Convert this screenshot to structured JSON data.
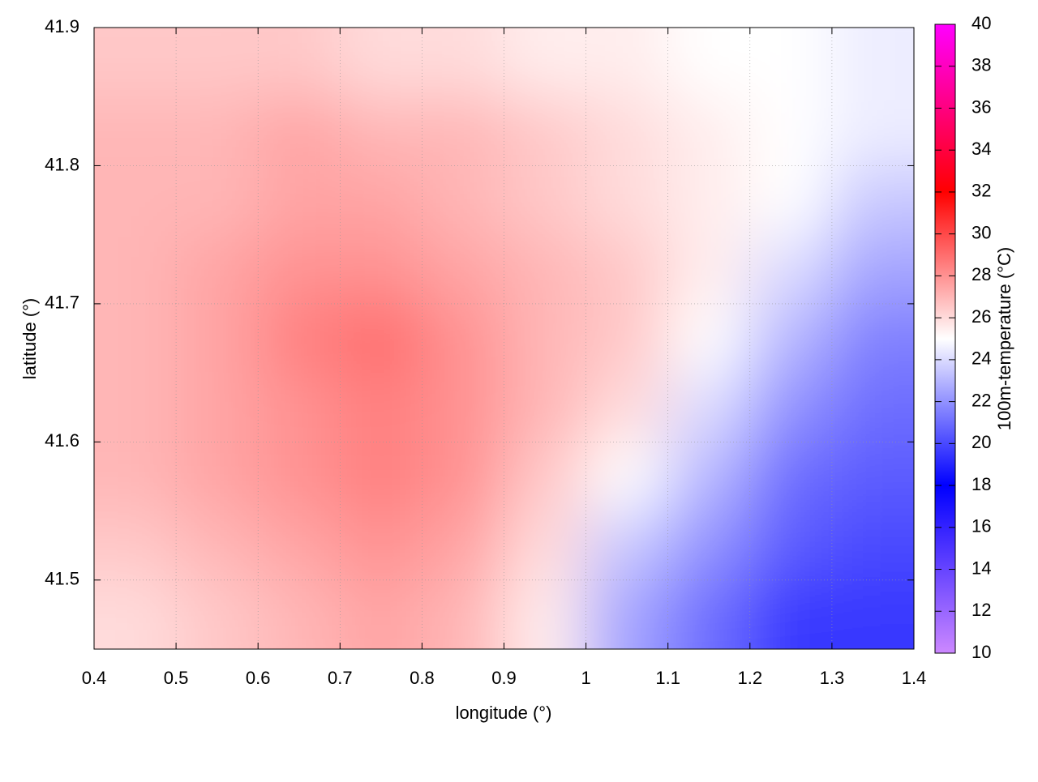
{
  "chart_data": {
    "type": "heatmap",
    "xlabel": "longitude (°)",
    "ylabel": "latitude (°)",
    "colorbar_label": "100m-temperature (°C)",
    "x": [
      0.45,
      0.55,
      0.65,
      0.75,
      0.85,
      0.95,
      1.05,
      1.15,
      1.25,
      1.35
    ],
    "y": [
      41.475,
      41.525,
      41.575,
      41.625,
      41.675,
      41.725,
      41.775,
      41.825,
      41.875
    ],
    "z": [
      [
        26,
        26.5,
        27,
        27.5,
        27,
        25.5,
        22.5,
        21,
        19.5,
        19.5
      ],
      [
        26.5,
        27,
        27.5,
        28,
        27.5,
        26,
        23.5,
        22,
        20.5,
        20
      ],
      [
        27,
        27.5,
        28,
        28.5,
        28,
        26.5,
        25,
        23,
        21,
        20.5
      ],
      [
        27,
        27.5,
        28,
        28.5,
        28,
        27,
        26,
        24,
        22,
        21
      ],
      [
        27,
        27.5,
        28.5,
        29,
        28,
        27,
        26.5,
        25,
        23,
        21.5
      ],
      [
        27,
        27.5,
        28,
        28,
        27.5,
        27,
        26.5,
        25.5,
        24,
        22.5
      ],
      [
        27,
        27,
        27.5,
        27.5,
        27,
        26.5,
        26,
        25.5,
        25,
        23.5
      ],
      [
        27,
        27,
        27.5,
        27,
        27,
        26.5,
        26,
        25.5,
        25,
        24.5
      ],
      [
        26.5,
        26.5,
        26.5,
        26,
        26,
        25.5,
        25.5,
        25,
        25,
        24.5
      ]
    ],
    "xlim": [
      0.4,
      1.4
    ],
    "xticks": [
      0.4,
      0.5,
      0.6,
      0.7,
      0.8,
      0.9,
      1.0,
      1.1,
      1.2,
      1.3,
      1.4
    ],
    "ylim": [
      41.45,
      41.9
    ],
    "yticks": [
      41.5,
      41.6,
      41.7,
      41.8,
      41.9
    ],
    "clim": [
      10,
      40
    ],
    "cticks": [
      10,
      12,
      14,
      16,
      18,
      20,
      22,
      24,
      26,
      28,
      30,
      32,
      34,
      36,
      38,
      40
    ],
    "colormap": [
      {
        "value": 10,
        "color": "#cc88ff"
      },
      {
        "value": 18,
        "color": "#0000ff"
      },
      {
        "value": 25,
        "color": "#ffffff"
      },
      {
        "value": 32,
        "color": "#ff0000"
      },
      {
        "value": 40,
        "color": "#ff00ff"
      }
    ],
    "grid": true
  }
}
